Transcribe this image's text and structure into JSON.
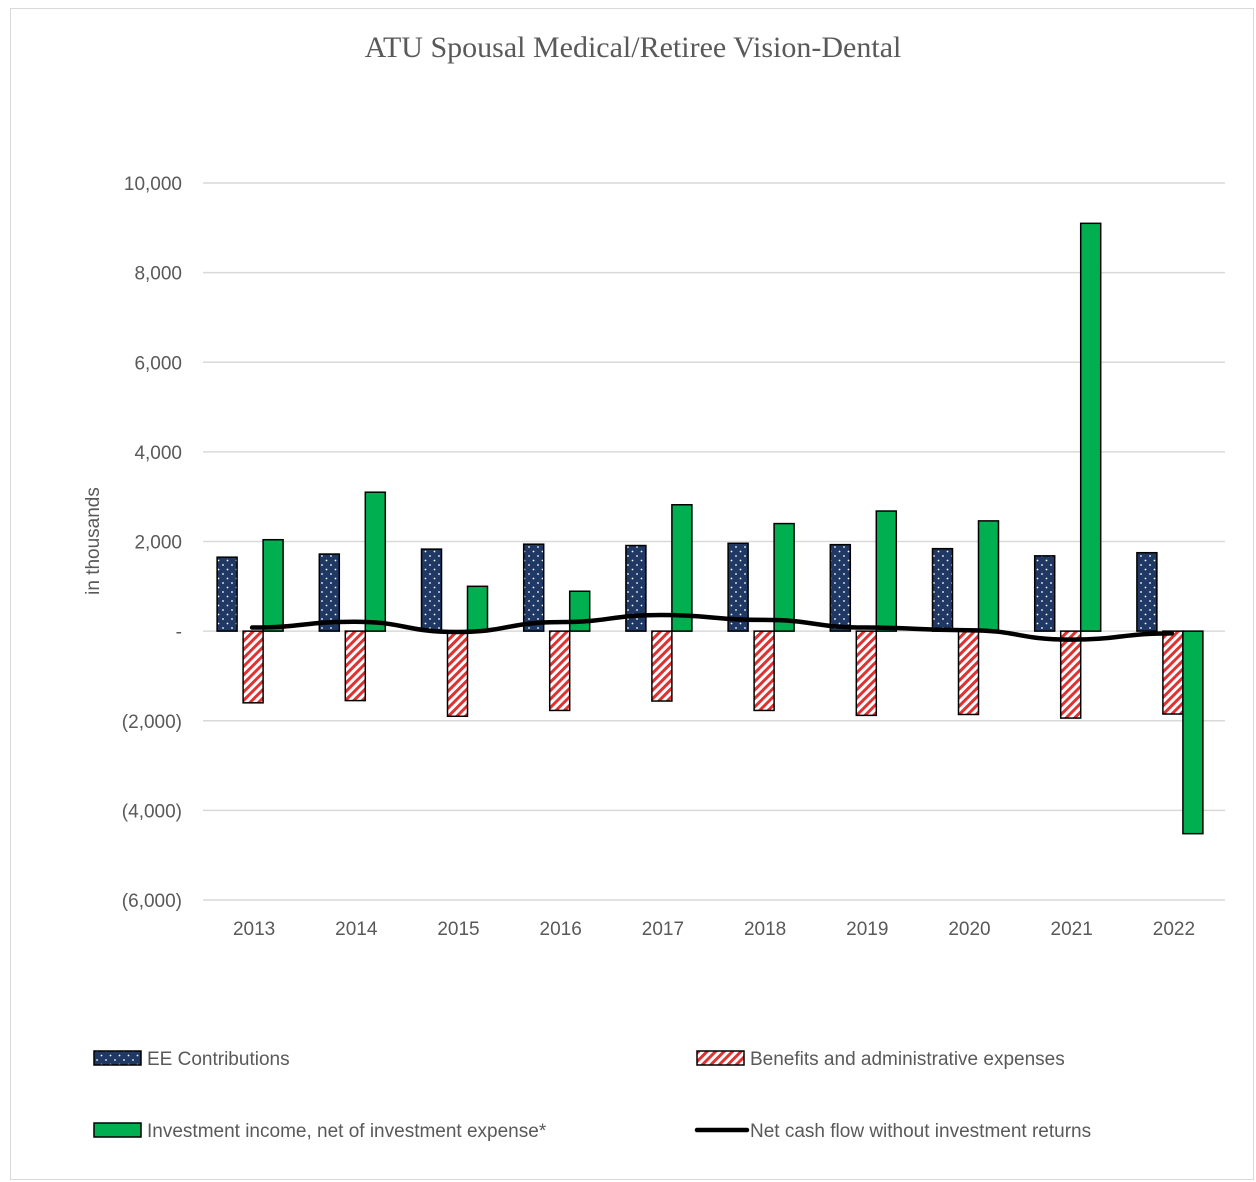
{
  "chart_data": {
    "type": "bar",
    "title": "ATU Spousal Medical/Retiree Vision-Dental",
    "ylabel": "in thousands",
    "xlabel": "",
    "categories": [
      "2013",
      "2014",
      "2015",
      "2016",
      "2017",
      "2018",
      "2019",
      "2020",
      "2021",
      "2022"
    ],
    "ylim": [
      -6000,
      10000
    ],
    "yticks": [
      {
        "value": 10000,
        "label": "10,000"
      },
      {
        "value": 8000,
        "label": "8,000"
      },
      {
        "value": 6000,
        "label": "6,000"
      },
      {
        "value": 4000,
        "label": "4,000"
      },
      {
        "value": 2000,
        "label": "2,000"
      },
      {
        "value": 0,
        "label": "-"
      },
      {
        "value": -2000,
        "label": "(2,000)"
      },
      {
        "value": -4000,
        "label": "(4,000)"
      },
      {
        "value": -6000,
        "label": "(6,000)"
      }
    ],
    "grid": true,
    "legend_position": "bottom",
    "series": [
      {
        "name": "EE Contributions",
        "kind": "bar",
        "color": "#1f3864",
        "pattern": "dots",
        "values": [
          1650,
          1720,
          1830,
          1940,
          1910,
          1960,
          1930,
          1840,
          1680,
          1750
        ]
      },
      {
        "name": "Benefits and administrative expenses",
        "kind": "bar",
        "color": "#c00000",
        "pattern": "diagonal-hatch",
        "values": [
          -1600,
          -1550,
          -1900,
          -1770,
          -1560,
          -1770,
          -1880,
          -1860,
          -1940,
          -1850
        ]
      },
      {
        "name": "Investment income, net of investment expense*",
        "kind": "bar",
        "color": "#00b050",
        "pattern": "solid",
        "values": [
          2040,
          3100,
          1000,
          890,
          2820,
          2400,
          2680,
          2460,
          9100,
          -4520
        ]
      },
      {
        "name": "Net cash flow without investment returns",
        "kind": "line",
        "color": "#000000",
        "values": [
          80,
          210,
          -20,
          200,
          360,
          250,
          80,
          20,
          -190,
          -50
        ]
      }
    ]
  }
}
